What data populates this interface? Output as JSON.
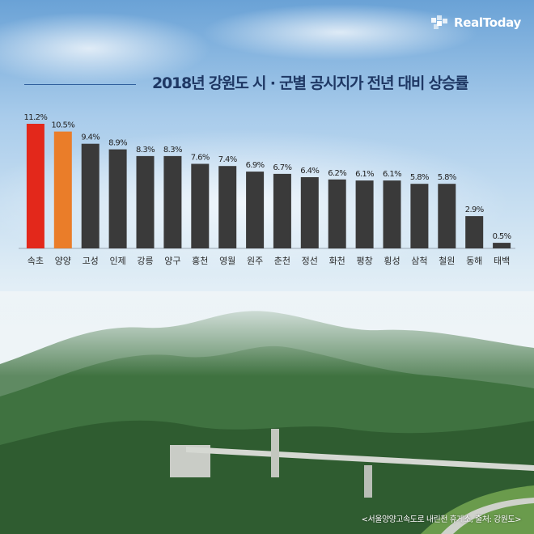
{
  "brand": {
    "name": "RealToday",
    "icon": "realtoday-logo-icon"
  },
  "colors": {
    "highlight1": "#e3281b",
    "highlight2": "#ea7d29",
    "bar": "#3a3a3a",
    "title": "#1f3864"
  },
  "chart_data": {
    "type": "bar",
    "title": "2018년 강원도 시 · 군별 공시지가 전년 대비 상승률",
    "xlabel": "",
    "ylabel": "",
    "categories": [
      "속초",
      "양양",
      "고성",
      "인제",
      "강릉",
      "양구",
      "홍천",
      "영월",
      "원주",
      "춘천",
      "정선",
      "화천",
      "평창",
      "횡성",
      "삼척",
      "철원",
      "동해",
      "태백"
    ],
    "values": [
      11.2,
      10.5,
      9.4,
      8.9,
      8.3,
      8.3,
      7.6,
      7.4,
      6.9,
      6.7,
      6.4,
      6.2,
      6.1,
      6.1,
      5.8,
      5.8,
      2.9,
      0.5
    ],
    "value_labels": [
      "11.2%",
      "10.5%",
      "9.4%",
      "8.9%",
      "8.3%",
      "8.3%",
      "7.6%",
      "7.4%",
      "6.9%",
      "6.7%",
      "6.4%",
      "6.2%",
      "6.1%",
      "6.1%",
      "5.8%",
      "5.8%",
      "2.9%",
      "0.5%"
    ],
    "unit": "%",
    "ylim": [
      0,
      11.2
    ],
    "grid": false,
    "legend": "none"
  },
  "caption": "<서울양양고속도로 내린천 휴게소, 출처: 강원도>"
}
